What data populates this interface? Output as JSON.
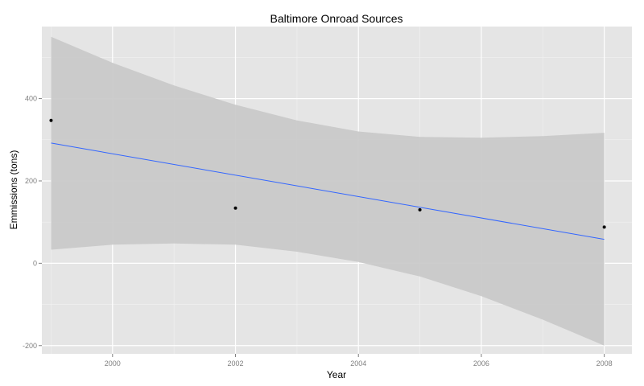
{
  "chart_data": {
    "type": "scatter",
    "title": "Baltimore Onroad Sources",
    "xlabel": "Year",
    "ylabel": "Emmissions (tons)",
    "xlim": [
      1998.85,
      2008.45
    ],
    "ylim": [
      -220,
      575
    ],
    "x_ticks": [
      2000,
      2002,
      2004,
      2006,
      2008
    ],
    "y_ticks": [
      -200,
      0,
      200,
      400
    ],
    "x_tick_labels": [
      "2000",
      "2002",
      "2004",
      "2006",
      "2008"
    ],
    "y_tick_labels": [
      "-200",
      "0",
      "200",
      "400"
    ],
    "grid": true,
    "legend": "none",
    "series": [
      {
        "values": [
          {
            "x": 1999,
            "y": 347
          },
          {
            "x": 2002,
            "y": 134
          },
          {
            "x": 2005,
            "y": 130
          },
          {
            "x": 2008,
            "y": 88
          }
        ]
      }
    ],
    "trend_line": {
      "x": [
        1999,
        2008
      ],
      "y": [
        292,
        58
      ]
    },
    "confidence_band": {
      "x": [
        1999,
        2000,
        2001,
        2002,
        2003,
        2004,
        2005,
        2006,
        2007,
        2008
      ],
      "upper": [
        550,
        487,
        432,
        385,
        347,
        320,
        307,
        305,
        309,
        317
      ],
      "lower": [
        33,
        45,
        48,
        45,
        28,
        3,
        -32,
        -80,
        -137,
        -200
      ]
    },
    "colors": {
      "panel": "#e5e5e5",
      "grid_major": "#ffffff",
      "grid_minor": "#f2f2f2",
      "band": "#c8c8c8",
      "line": "#3366ff",
      "point": "#000000"
    }
  }
}
